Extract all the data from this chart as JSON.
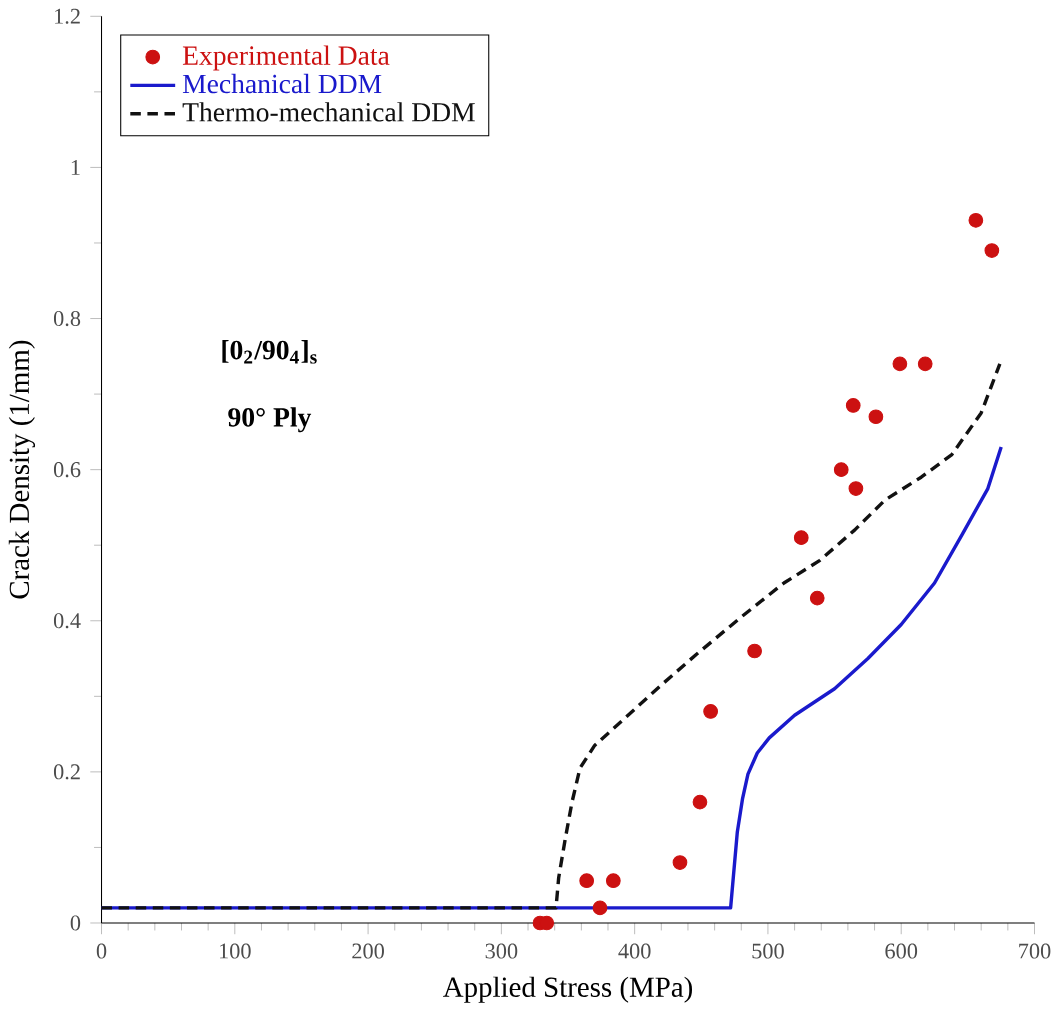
{
  "chart_data": {
    "type": "line",
    "xlabel": "Applied Stress (MPa)",
    "ylabel": "Crack Density (1/mm)",
    "xlim": [
      0,
      700
    ],
    "ylim": [
      0,
      1.2
    ],
    "xticks": [
      0,
      100,
      200,
      300,
      400,
      500,
      600,
      700
    ],
    "yticks": [
      0,
      0.2,
      0.4,
      0.6,
      0.8,
      1,
      1.2
    ],
    "legend": "top left",
    "marker": "circle",
    "annotations": [
      "[0$_{2}$/90$_{4}$]$_{s}$",
      "90° Ply"
    ],
    "series": [
      {
        "name": "Experimental Data",
        "type": "scatter",
        "color": "#cc1111",
        "x": [
          329,
          334,
          364,
          374,
          384,
          434,
          449,
          457,
          490,
          525,
          537,
          555,
          566,
          564,
          581,
          599,
          618,
          656,
          668
        ],
        "values": [
          0,
          0,
          0.056,
          0.02,
          0.056,
          0.08,
          0.16,
          0.28,
          0.36,
          0.51,
          0.43,
          0.6,
          0.575,
          0.685,
          0.67,
          0.74,
          0.74,
          0.93,
          0.89
        ]
      },
      {
        "name": "Mechanical DDM",
        "marker": "none",
        "line_style": "solid",
        "color": "#1a1acc",
        "x": [
          0,
          472,
          474,
          477,
          481,
          485,
          492,
          501,
          520,
          550,
          575,
          600,
          625,
          646,
          665,
          675
        ],
        "values": [
          0.02,
          0.02,
          0.06,
          0.12,
          0.165,
          0.197,
          0.225,
          0.245,
          0.275,
          0.31,
          0.35,
          0.395,
          0.45,
          0.515,
          0.575,
          0.63
        ]
      },
      {
        "name": "Thermo-mechanical DDM",
        "marker": "none",
        "line_style": "dashed",
        "color": "#111111",
        "x": [
          0,
          341,
          343,
          348,
          353,
          359,
          370,
          392,
          420,
          446,
          480,
          512,
          539,
          565,
          588,
          615,
          638,
          660,
          674
        ],
        "values": [
          0.02,
          0.02,
          0.06,
          0.112,
          0.16,
          0.205,
          0.235,
          0.27,
          0.315,
          0.355,
          0.405,
          0.45,
          0.48,
          0.52,
          0.56,
          0.59,
          0.62,
          0.675,
          0.74
        ]
      }
    ]
  }
}
